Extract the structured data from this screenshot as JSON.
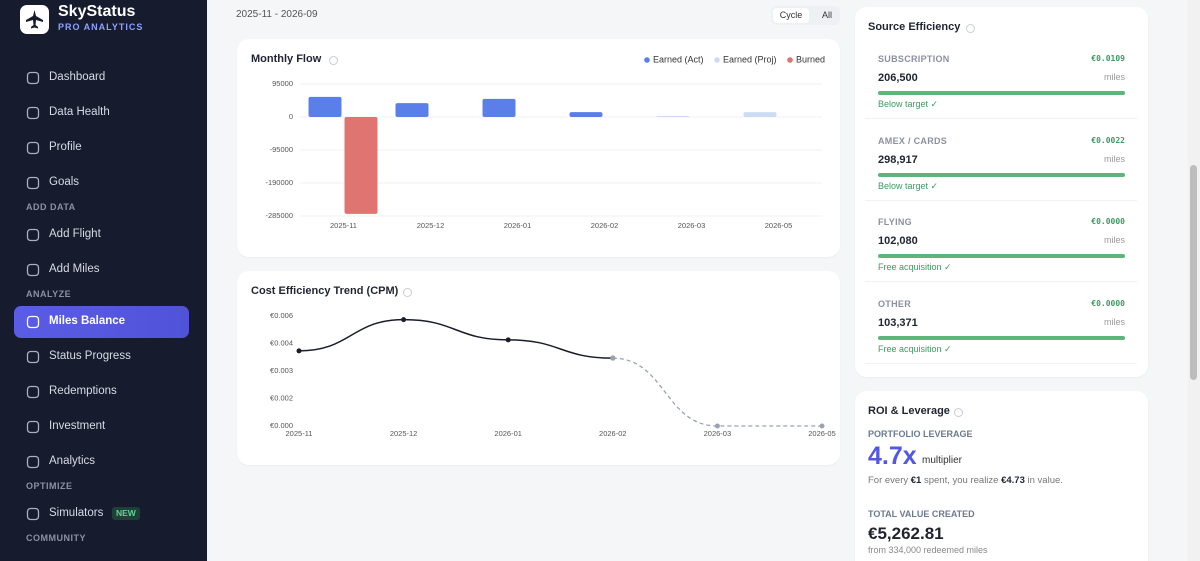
{
  "sidebar": {
    "brand": {
      "title": "SkyStatus",
      "subtitle": "PRO ANALYTICS"
    },
    "groups": [
      {
        "items": [
          {
            "label": "Dashboard"
          },
          {
            "label": "Data Health"
          },
          {
            "label": "Profile"
          },
          {
            "label": "Goals"
          }
        ]
      },
      {
        "heading": "ADD DATA",
        "items": [
          {
            "label": "Add Flight"
          },
          {
            "label": "Add Miles"
          }
        ]
      },
      {
        "heading": "ANALYZE",
        "items": [
          {
            "label": "Miles Balance",
            "active": true
          },
          {
            "label": "Status Progress"
          },
          {
            "label": "Redemptions"
          },
          {
            "label": "Investment"
          },
          {
            "label": "Analytics"
          }
        ]
      },
      {
        "heading": "OPTIMIZE",
        "items": [
          {
            "label": "Simulators",
            "badge": "NEW"
          }
        ]
      },
      {
        "heading": "COMMUNITY",
        "items": []
      }
    ]
  },
  "header": {
    "date_range": "2025-11 - 2026-09",
    "toggles": [
      {
        "label": "Cycle",
        "active": true
      },
      {
        "label": "All"
      }
    ]
  },
  "chart_data": [
    {
      "type": "bar",
      "title": "Monthly Flow",
      "categories": [
        "2025-11",
        "2025-12",
        "2026-01",
        "2026-02",
        "2026-03",
        "2026-05"
      ],
      "series": [
        {
          "name": "Earned (Act)",
          "color": "#5b7fe8",
          "values": [
            58000,
            40000,
            52000,
            14000,
            null,
            null
          ]
        },
        {
          "name": "Earned (Proj)",
          "color": "#cddcf5",
          "values": [
            null,
            null,
            null,
            null,
            3000,
            14000
          ]
        },
        {
          "name": "Burned",
          "color": "#e07470",
          "values": [
            -279000,
            null,
            null,
            null,
            null,
            null
          ]
        }
      ],
      "ylim": [
        -285000,
        95000
      ],
      "yticks": [
        95000,
        0,
        -95000,
        -190000,
        -285000
      ],
      "grid": true,
      "legend": "top-right"
    },
    {
      "type": "line",
      "title": "Cost Efficiency Trend (CPM)",
      "categories": [
        "2025-11",
        "2025-12",
        "2026-01",
        "2026-02",
        "2026-03",
        "2026-05"
      ],
      "series": [
        {
          "color": "#1a1d29",
          "values": [
            0.0041,
            0.0058,
            0.0047,
            0.0037,
            null,
            null
          ]
        },
        {
          "color": "#9aa3b5",
          "dashed": true,
          "values": [
            null,
            null,
            null,
            0.0037,
            0,
            0
          ]
        }
      ],
      "ylim": [
        0,
        0.006
      ],
      "yticks": [
        {
          "value": 0.006,
          "label": "€0.006"
        },
        {
          "value": 0.0045,
          "label": "€0.004"
        },
        {
          "value": 0.003,
          "label": "€0.003"
        },
        {
          "value": 0.0015,
          "label": "€0.002"
        },
        {
          "value": 0,
          "label": "€0.000"
        }
      ],
      "grid": false
    }
  ],
  "source_efficiency": {
    "title": "Source Efficiency",
    "items": [
      {
        "label": "SUBSCRIPTION",
        "cost": "€0.0109",
        "miles": "206,500",
        "unit": "miles",
        "status": "Below target ✓"
      },
      {
        "label": "AMEX / CARDS",
        "cost": "€0.0022",
        "miles": "298,917",
        "unit": "miles",
        "status": "Below target ✓"
      },
      {
        "label": "FLYING",
        "cost": "€0.0000",
        "miles": "102,080",
        "unit": "miles",
        "status": "Free acquisition ✓"
      },
      {
        "label": "OTHER",
        "cost": "€0.0000",
        "miles": "103,371",
        "unit": "miles",
        "status": "Free acquisition ✓"
      }
    ]
  },
  "roi": {
    "title": "ROI & Leverage",
    "leverage_label": "PORTFOLIO LEVERAGE",
    "leverage": "4.7x",
    "leverage_unit": "multiplier",
    "sentence": [
      "For every ",
      "€1",
      " spent, you realize ",
      "€4.73",
      " in value."
    ],
    "total_label": "TOTAL VALUE CREATED",
    "total": "€5,262.81",
    "total_note": "from 334,000 redeemed miles"
  }
}
